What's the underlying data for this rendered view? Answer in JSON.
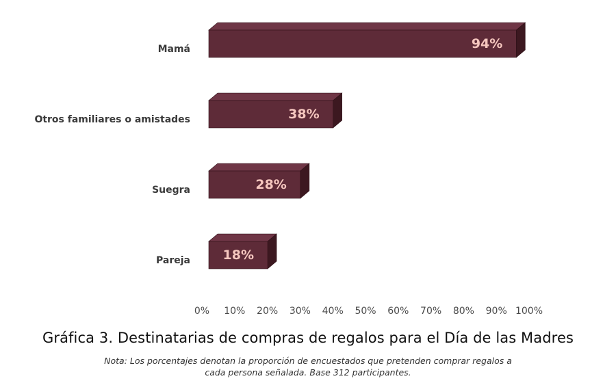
{
  "chart_data": {
    "type": "bar",
    "orientation": "horizontal",
    "categories": [
      "Mamá",
      "Otros familiares o amistades",
      "Suegra",
      "Pareja"
    ],
    "values": [
      94,
      38,
      28,
      18
    ],
    "data_labels": [
      "94%",
      "38%",
      "28%",
      "18%"
    ],
    "xlim": [
      0,
      100
    ],
    "x_ticks": [
      "0%",
      "10%",
      "20%",
      "30%",
      "40%",
      "50%",
      "60%",
      "70%",
      "80%",
      "90%",
      "100%"
    ],
    "grid": false,
    "title": "Gráfica 3. Destinatarias de compras de regalos para el Día de las Madres",
    "note": "Nota: Los porcentajes denotan la proporción de encuestados que pretenden comprar regalos a cada persona señalada. Base 312 participantes.",
    "colors": {
      "bar_front": "#5e2b38",
      "bar_top": "#6f3646",
      "bar_side": "#3c1820",
      "bar_outline": "#2f1118",
      "data_label": "#f6c7bf"
    }
  }
}
